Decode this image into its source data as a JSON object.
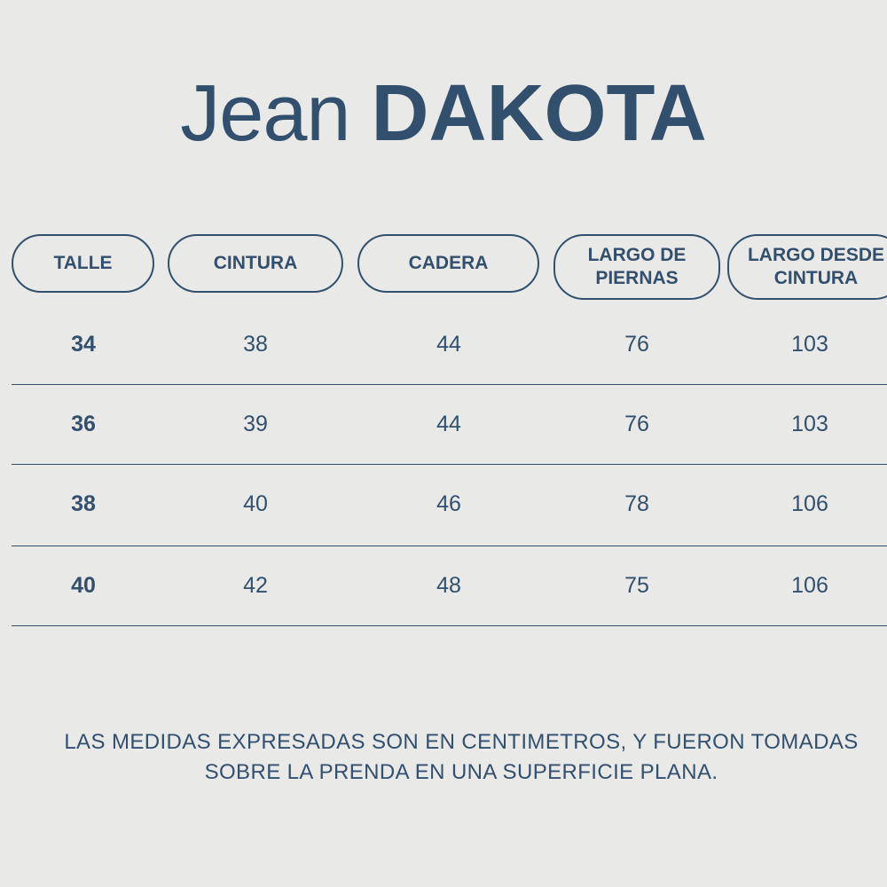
{
  "title": {
    "light": "Jean",
    "bold": "DAKOTA"
  },
  "table": {
    "headers": [
      "TALLE",
      "CINTURA",
      "CADERA",
      "LARGO DE\nPIERNAS",
      "LARGO DESDE\nCINTURA"
    ],
    "rows": [
      [
        "34",
        "38",
        "44",
        "76",
        "103"
      ],
      [
        "36",
        "39",
        "44",
        "76",
        "103"
      ],
      [
        "38",
        "40",
        "46",
        "78",
        "106"
      ],
      [
        "40",
        "42",
        "48",
        "75",
        "106"
      ]
    ]
  },
  "note": "LAS MEDIDAS EXPRESADAS SON EN CENTIMETROS, Y FUERON TOMADAS SOBRE LA PRENDA EN UNA SUPERFICIE PLANA."
}
